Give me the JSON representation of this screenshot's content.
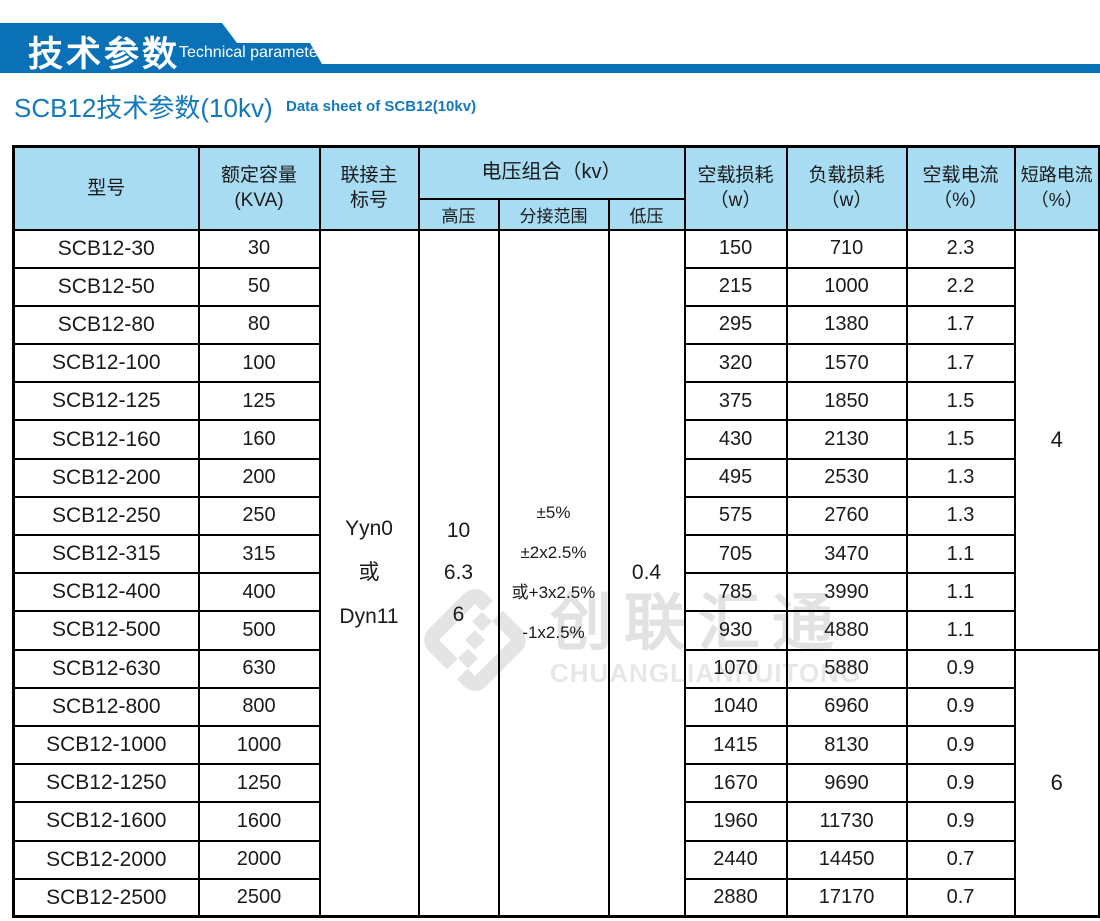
{
  "colors": {
    "brand_blue": "#0b71b6",
    "title_blue": "#1478bd",
    "table_header_bg": "#a8dcf2",
    "border_black": "#000000",
    "watermark_gray": "#e3e3e3"
  },
  "banner": {
    "title_zh": "技术参数",
    "title_en": "Technical parameter"
  },
  "page_title": {
    "zh": "SCB12技术参数(10kv)",
    "en": "Data sheet of SCB12(10kv)"
  },
  "watermark": {
    "logo": "interlocked-diamond-logo",
    "text_zh": "创联汇通",
    "text_en": "CHUANGLIANHUITONG"
  },
  "table": {
    "header": {
      "model": "型号",
      "capacity_l1": "额定容量",
      "capacity_l2": "(KVA)",
      "vector_l1": "联接主",
      "vector_l2": "标号",
      "voltage_group": "电压组合（kv）",
      "hv": "高压",
      "tap": "分接范围",
      "lv": "低压",
      "no_load_loss_l1": "空载损耗",
      "no_load_loss_l2": "（w）",
      "load_loss_l1": "负载损耗",
      "load_loss_l2": "（w）",
      "no_load_current_l1": "空载电流",
      "no_load_current_l2": "（%）",
      "short_circuit_l1": "短路电流",
      "short_circuit_l2": "（%）"
    },
    "merged": {
      "vector": [
        "Yyn0",
        "或",
        "Dyn11"
      ],
      "hv": [
        "10",
        "6.3",
        "6"
      ],
      "tap": [
        "±5%",
        "±2x2.5%",
        "或+3x2.5%",
        "-1x2.5%"
      ],
      "lv": "0.4",
      "impedance_groups": [
        {
          "value": "4",
          "row_span": 11
        },
        {
          "value": "6",
          "row_span": 7
        }
      ]
    },
    "rows": [
      {
        "model": "SCB12-30",
        "kva": "30",
        "no_load_loss": "150",
        "load_loss": "710",
        "no_load_current": "2.3"
      },
      {
        "model": "SCB12-50",
        "kva": "50",
        "no_load_loss": "215",
        "load_loss": "1000",
        "no_load_current": "2.2"
      },
      {
        "model": "SCB12-80",
        "kva": "80",
        "no_load_loss": "295",
        "load_loss": "1380",
        "no_load_current": "1.7"
      },
      {
        "model": "SCB12-100",
        "kva": "100",
        "no_load_loss": "320",
        "load_loss": "1570",
        "no_load_current": "1.7"
      },
      {
        "model": "SCB12-125",
        "kva": "125",
        "no_load_loss": "375",
        "load_loss": "1850",
        "no_load_current": "1.5"
      },
      {
        "model": "SCB12-160",
        "kva": "160",
        "no_load_loss": "430",
        "load_loss": "2130",
        "no_load_current": "1.5"
      },
      {
        "model": "SCB12-200",
        "kva": "200",
        "no_load_loss": "495",
        "load_loss": "2530",
        "no_load_current": "1.3"
      },
      {
        "model": "SCB12-250",
        "kva": "250",
        "no_load_loss": "575",
        "load_loss": "2760",
        "no_load_current": "1.3"
      },
      {
        "model": "SCB12-315",
        "kva": "315",
        "no_load_loss": "705",
        "load_loss": "3470",
        "no_load_current": "1.1"
      },
      {
        "model": "SCB12-400",
        "kva": "400",
        "no_load_loss": "785",
        "load_loss": "3990",
        "no_load_current": "1.1"
      },
      {
        "model": "SCB12-500",
        "kva": "500",
        "no_load_loss": "930",
        "load_loss": "4880",
        "no_load_current": "1.1"
      },
      {
        "model": "SCB12-630",
        "kva": "630",
        "no_load_loss": "1070",
        "load_loss": "5880",
        "no_load_current": "0.9"
      },
      {
        "model": "SCB12-800",
        "kva": "800",
        "no_load_loss": "1040",
        "load_loss": "6960",
        "no_load_current": "0.9"
      },
      {
        "model": "SCB12-1000",
        "kva": "1000",
        "no_load_loss": "1415",
        "load_loss": "8130",
        "no_load_current": "0.9"
      },
      {
        "model": "SCB12-1250",
        "kva": "1250",
        "no_load_loss": "1670",
        "load_loss": "9690",
        "no_load_current": "0.9"
      },
      {
        "model": "SCB12-1600",
        "kva": "1600",
        "no_load_loss": "1960",
        "load_loss": "11730",
        "no_load_current": "0.9"
      },
      {
        "model": "SCB12-2000",
        "kva": "2000",
        "no_load_loss": "2440",
        "load_loss": "14450",
        "no_load_current": "0.7"
      },
      {
        "model": "SCB12-2500",
        "kva": "2500",
        "no_load_loss": "2880",
        "load_loss": "17170",
        "no_load_current": "0.7"
      }
    ]
  }
}
